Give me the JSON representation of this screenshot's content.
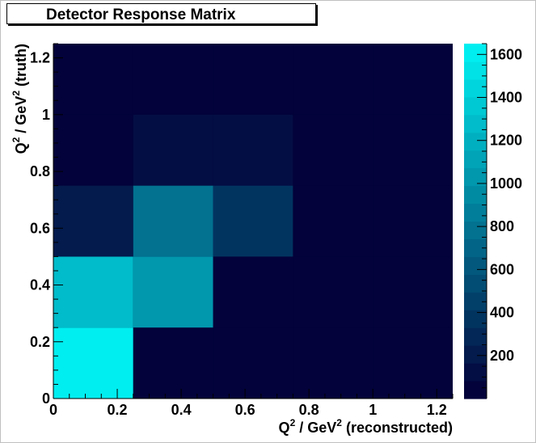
{
  "chart_data": {
    "type": "heatmap",
    "title": "Detector Response Matrix",
    "xlabel": {
      "pre": "Q",
      "sup": "2",
      "mid": " / GeV",
      "sup2": "2",
      "post": " (reconstructed)"
    },
    "ylabel": {
      "pre": "Q",
      "sup": "2",
      "mid": " / GeV",
      "sup2": "2",
      "post": " (truth)"
    },
    "x_bins": [
      0,
      0.25,
      0.5,
      0.75,
      1.0,
      1.25
    ],
    "y_bins": [
      0,
      0.25,
      0.5,
      0.75,
      1.0,
      1.25
    ],
    "xlim": [
      0,
      1.25
    ],
    "ylim": [
      0,
      1.25
    ],
    "x_ticks": [
      "0",
      "0.2",
      "0.4",
      "0.6",
      "0.8",
      "1",
      "1.2"
    ],
    "y_ticks": [
      "0",
      "0.2",
      "0.4",
      "0.6",
      "0.8",
      "1",
      "1.2"
    ],
    "values": [
      [
        1650,
        30,
        20,
        10,
        10
      ],
      [
        1300,
        1050,
        80,
        20,
        10
      ],
      [
        220,
        750,
        350,
        20,
        10
      ],
      [
        60,
        90,
        90,
        60,
        10
      ],
      [
        20,
        20,
        20,
        70,
        10
      ]
    ],
    "z_range": [
      0,
      1650
    ],
    "colorbar_ticks": [
      "200",
      "400",
      "600",
      "800",
      "1000",
      "1200",
      "1400",
      "1600"
    ],
    "colors": {
      "low": "#03023a",
      "high": "#00eef0"
    }
  }
}
